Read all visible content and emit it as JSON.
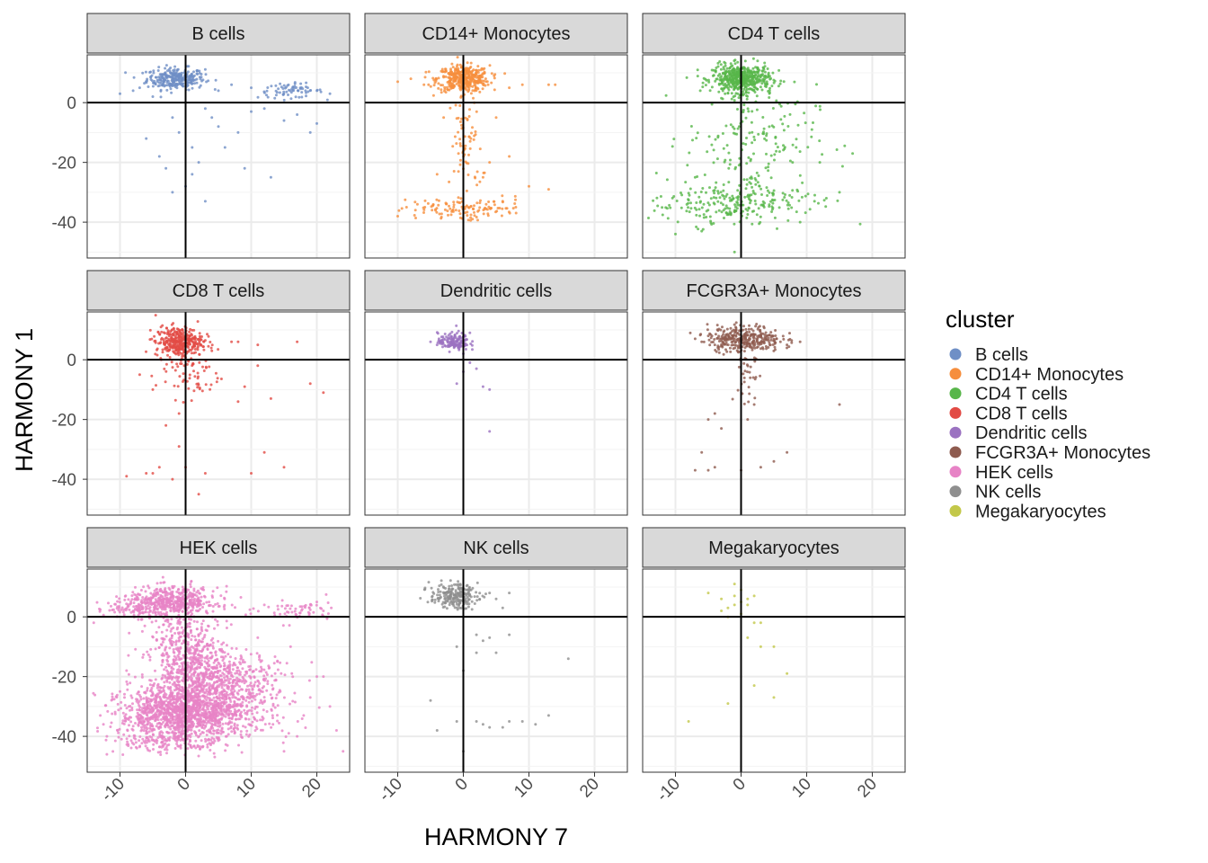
{
  "chart_data": {
    "type": "scatter",
    "facet_layout": "3x3 grid",
    "xlabel": "HARMONY 7",
    "ylabel": "HARMONY 1",
    "xlim": [
      -15,
      25
    ],
    "ylim": [
      -52,
      16
    ],
    "x_ticks": [
      -10,
      0,
      10,
      20
    ],
    "y_ticks": [
      0,
      -20,
      -40
    ],
    "grid": true,
    "reference_lines": {
      "x": 0,
      "y": 0
    },
    "legend": {
      "title": "cluster",
      "position": "right",
      "entries": [
        {
          "label": "B cells",
          "color": "#6F8FC6"
        },
        {
          "label": "CD14+ Monocytes",
          "color": "#F68E3D"
        },
        {
          "label": "CD4 T cells",
          "color": "#58B64A"
        },
        {
          "label": "CD8 T cells",
          "color": "#E24B45"
        },
        {
          "label": "Dendritic cells",
          "color": "#9B72C1"
        },
        {
          "label": "FCGR3A+ Monocytes",
          "color": "#8E5B4F"
        },
        {
          "label": "HEK cells",
          "color": "#E783C6"
        },
        {
          "label": "NK cells",
          "color": "#8F8F8F"
        },
        {
          "label": "Megakaryocytes",
          "color": "#C3C84A"
        }
      ]
    },
    "panels": [
      {
        "title": "B cells",
        "color": "#6F8FC6",
        "clusters": [
          {
            "cx": -1.5,
            "cy": 8,
            "sx": 2.2,
            "sy": 1.8,
            "n": 280
          },
          {
            "cx": 16,
            "cy": 4,
            "sx": 2.5,
            "sy": 1.2,
            "n": 70
          }
        ],
        "points": [
          [
            3,
            -2
          ],
          [
            4,
            -5
          ],
          [
            5,
            -8
          ],
          [
            -1,
            -10
          ],
          [
            1,
            -15
          ],
          [
            -4,
            -18
          ],
          [
            -2,
            -30
          ],
          [
            0,
            -28
          ],
          [
            3,
            -33
          ],
          [
            9,
            -22
          ],
          [
            13,
            -25
          ],
          [
            -2,
            -5
          ],
          [
            10,
            -3
          ],
          [
            12,
            -2
          ],
          [
            19,
            -10
          ],
          [
            20,
            -7
          ],
          [
            17,
            -4
          ],
          [
            15,
            -6
          ],
          [
            8,
            -10
          ],
          [
            -6,
            -12
          ],
          [
            2,
            -20
          ],
          [
            6,
            -15
          ],
          [
            -10,
            3
          ],
          [
            -8,
            4
          ],
          [
            22,
            3
          ],
          [
            7,
            6
          ],
          [
            5,
            4
          ],
          [
            10,
            5
          ],
          [
            -5,
            2
          ],
          [
            -7,
            5
          ],
          [
            1,
            -24
          ],
          [
            -3,
            -22
          ]
        ]
      },
      {
        "title": "CD14+ Monocytes",
        "color": "#F68E3D",
        "clusters": [
          {
            "cx": 0,
            "cy": 8,
            "sx": 2.0,
            "sy": 2.2,
            "n": 400
          },
          {
            "cx": -3,
            "cy": -36,
            "sx": 3.5,
            "sy": 1.8,
            "n": 70
          },
          {
            "cx": 3,
            "cy": -35,
            "sx": 3.5,
            "sy": 1.8,
            "n": 50
          },
          {
            "cx": 0.5,
            "cy": -15,
            "sx": 1.2,
            "sy": 9,
            "n": 70
          }
        ],
        "points": [
          [
            -10,
            7
          ],
          [
            -8,
            8
          ],
          [
            -6,
            6
          ],
          [
            13,
            6
          ],
          [
            14,
            6
          ],
          [
            9,
            6
          ],
          [
            7,
            5
          ],
          [
            10,
            -28
          ],
          [
            13,
            -29
          ],
          [
            -10,
            -38
          ],
          [
            -7,
            -34
          ],
          [
            6,
            -33
          ],
          [
            8,
            -35
          ],
          [
            4,
            -20
          ],
          [
            3,
            -25
          ],
          [
            -4,
            -24
          ],
          [
            5,
            -5
          ],
          [
            7,
            -18
          ],
          [
            -3,
            -5
          ]
        ]
      },
      {
        "title": "CD4 T cells",
        "color": "#58B64A",
        "clusters": [
          {
            "cx": 0,
            "cy": 8,
            "sx": 2.2,
            "sy": 2.3,
            "n": 500
          },
          {
            "cx": 1.5,
            "cy": -12,
            "sx": 5,
            "sy": 9,
            "n": 160
          },
          {
            "cx": -4,
            "cy": -34,
            "sx": 5,
            "sy": 3.5,
            "n": 140
          },
          {
            "cx": 4,
            "cy": -32,
            "sx": 5,
            "sy": 4,
            "n": 110
          }
        ],
        "points": [
          [
            -10,
            -44
          ],
          [
            -1,
            -50
          ],
          [
            17,
            -17
          ],
          [
            15,
            -30
          ],
          [
            13,
            -32
          ],
          [
            -6,
            -43
          ],
          [
            9,
            -40
          ],
          [
            12,
            -20
          ],
          [
            -7,
            -25
          ]
        ]
      },
      {
        "title": "CD8 T cells",
        "color": "#E24B45",
        "clusters": [
          {
            "cx": -1,
            "cy": 6,
            "sx": 1.8,
            "sy": 2.5,
            "n": 350
          },
          {
            "cx": 0.5,
            "cy": -5,
            "sx": 2.5,
            "sy": 4,
            "n": 60
          }
        ],
        "points": [
          [
            -9,
            -39
          ],
          [
            -5,
            -38
          ],
          [
            -4,
            -36
          ],
          [
            -6,
            -38
          ],
          [
            -2,
            -40
          ],
          [
            0,
            -36
          ],
          [
            3,
            -38
          ],
          [
            2,
            -45
          ],
          [
            10,
            -38
          ],
          [
            15,
            -36
          ],
          [
            12,
            -31
          ],
          [
            19,
            -8
          ],
          [
            21,
            -11
          ],
          [
            13,
            -13
          ],
          [
            9,
            -9
          ],
          [
            8,
            -14
          ],
          [
            -3,
            -22
          ],
          [
            -1,
            -29
          ],
          [
            7,
            6
          ],
          [
            8,
            6
          ],
          [
            11,
            5
          ],
          [
            17,
            6
          ],
          [
            4,
            3
          ],
          [
            -7,
            -5
          ],
          [
            -5,
            -10
          ],
          [
            11,
            -2
          ],
          [
            -1,
            -18
          ]
        ]
      },
      {
        "title": "Dendritic cells",
        "color": "#9B72C1",
        "clusters": [
          {
            "cx": -1.5,
            "cy": 6,
            "sx": 1.2,
            "sy": 1.5,
            "n": 140
          }
        ],
        "points": [
          [
            -4,
            5
          ],
          [
            -5,
            6
          ],
          [
            -3,
            7
          ],
          [
            1,
            -1
          ],
          [
            2,
            -3
          ],
          [
            0,
            -4
          ],
          [
            -1,
            -8
          ],
          [
            3,
            -9
          ],
          [
            4,
            -10
          ],
          [
            4,
            -24
          ],
          [
            1,
            9
          ],
          [
            0,
            2
          ]
        ]
      },
      {
        "title": "FCGR3A+ Monocytes",
        "color": "#8E5B4F",
        "clusters": [
          {
            "cx": 0.5,
            "cy": 7,
            "sx": 2.8,
            "sy": 2.2,
            "n": 320
          },
          {
            "cx": 1,
            "cy": -7,
            "sx": 0.8,
            "sy": 7,
            "n": 30
          }
        ],
        "points": [
          [
            -7,
            7
          ],
          [
            -6,
            6
          ],
          [
            -5,
            8
          ],
          [
            -4,
            5
          ],
          [
            6,
            6
          ],
          [
            7,
            5
          ],
          [
            9,
            6
          ],
          [
            -5,
            -20
          ],
          [
            -4,
            -18
          ],
          [
            -3,
            -23
          ],
          [
            -7,
            -37
          ],
          [
            -6,
            -31
          ],
          [
            -5,
            -37
          ],
          [
            -4,
            -36
          ],
          [
            0,
            -37
          ],
          [
            3,
            -36
          ],
          [
            5,
            -34
          ],
          [
            7,
            -31
          ],
          [
            15,
            -15
          ],
          [
            2,
            -15
          ],
          [
            1,
            -20
          ]
        ]
      },
      {
        "title": "HEK cells",
        "color": "#E783C6",
        "clusters": [
          {
            "cx": -2,
            "cy": 5,
            "sx": 3.5,
            "sy": 2.5,
            "n": 500
          },
          {
            "cx": -1,
            "cy": -33,
            "sx": 4.5,
            "sy": 4.5,
            "n": 1000
          },
          {
            "cx": 4,
            "cy": -30,
            "sx": 6,
            "sy": 5,
            "n": 600
          },
          {
            "cx": 0.5,
            "cy": -15,
            "sx": 3,
            "sy": 8,
            "n": 600
          },
          {
            "cx": 6,
            "cy": -20,
            "sx": 4,
            "sy": 4,
            "n": 300
          },
          {
            "cx": 17,
            "cy": 2,
            "sx": 3,
            "sy": 2,
            "n": 60
          },
          {
            "cx": -8,
            "cy": 3,
            "sx": 3,
            "sy": 1.5,
            "n": 80
          },
          {
            "cx": -3,
            "cy": -42,
            "sx": 5,
            "sy": 1.5,
            "n": 100
          }
        ],
        "points": [
          [
            -14,
            -2
          ],
          [
            -16,
            3
          ],
          [
            24,
            -45
          ],
          [
            23,
            -38
          ],
          [
            22,
            -30
          ],
          [
            21,
            -20
          ],
          [
            20,
            -20
          ],
          [
            19,
            -27
          ],
          [
            18,
            -33
          ],
          [
            17,
            -40
          ],
          [
            15,
            -45
          ],
          [
            -12,
            -46
          ],
          [
            -13,
            -33
          ],
          [
            -12,
            -40
          ],
          [
            20,
            5
          ],
          [
            21,
            2
          ],
          [
            12,
            4
          ],
          [
            11,
            -7
          ],
          [
            14,
            -15
          ],
          [
            16,
            -10
          ],
          [
            -10,
            -25
          ],
          [
            -9,
            -18
          ]
        ]
      },
      {
        "title": "NK cells",
        "color": "#8F8F8F",
        "clusters": [
          {
            "cx": -1.5,
            "cy": 7,
            "sx": 1.8,
            "sy": 2.0,
            "n": 220
          }
        ],
        "points": [
          [
            4,
            8
          ],
          [
            5,
            6
          ],
          [
            7,
            8
          ],
          [
            6,
            3
          ],
          [
            2,
            -6
          ],
          [
            3,
            -8
          ],
          [
            4,
            -7
          ],
          [
            -1,
            -10
          ],
          [
            2,
            -12
          ],
          [
            5,
            -12
          ],
          [
            7,
            -6
          ],
          [
            0,
            -18
          ],
          [
            16,
            -14
          ],
          [
            -5,
            -28
          ],
          [
            -4,
            -38
          ],
          [
            -1,
            -35
          ],
          [
            0,
            -45
          ],
          [
            2,
            -35
          ],
          [
            3,
            -36
          ],
          [
            4,
            -37
          ],
          [
            6,
            -37
          ],
          [
            7,
            -35
          ],
          [
            9,
            -35
          ],
          [
            11,
            -36
          ],
          [
            13,
            -33
          ]
        ]
      },
      {
        "title": "Megakaryocytes",
        "color": "#C3C84A",
        "clusters": [],
        "points": [
          [
            -3,
            6
          ],
          [
            -1,
            7
          ],
          [
            0,
            5
          ],
          [
            1,
            6
          ],
          [
            0,
            9
          ],
          [
            -1,
            11
          ],
          [
            1,
            4
          ],
          [
            -2,
            3
          ],
          [
            -5,
            8
          ],
          [
            -2,
            0
          ],
          [
            0,
            1
          ],
          [
            2,
            -2
          ],
          [
            1,
            -7
          ],
          [
            3,
            -2
          ],
          [
            3,
            -10
          ],
          [
            5,
            -10
          ],
          [
            7,
            -19
          ],
          [
            2,
            -23
          ],
          [
            5,
            -27
          ],
          [
            -2,
            -29
          ],
          [
            -8,
            -35
          ],
          [
            -1,
            4
          ],
          [
            2,
            7
          ],
          [
            -3,
            2
          ]
        ]
      }
    ]
  }
}
